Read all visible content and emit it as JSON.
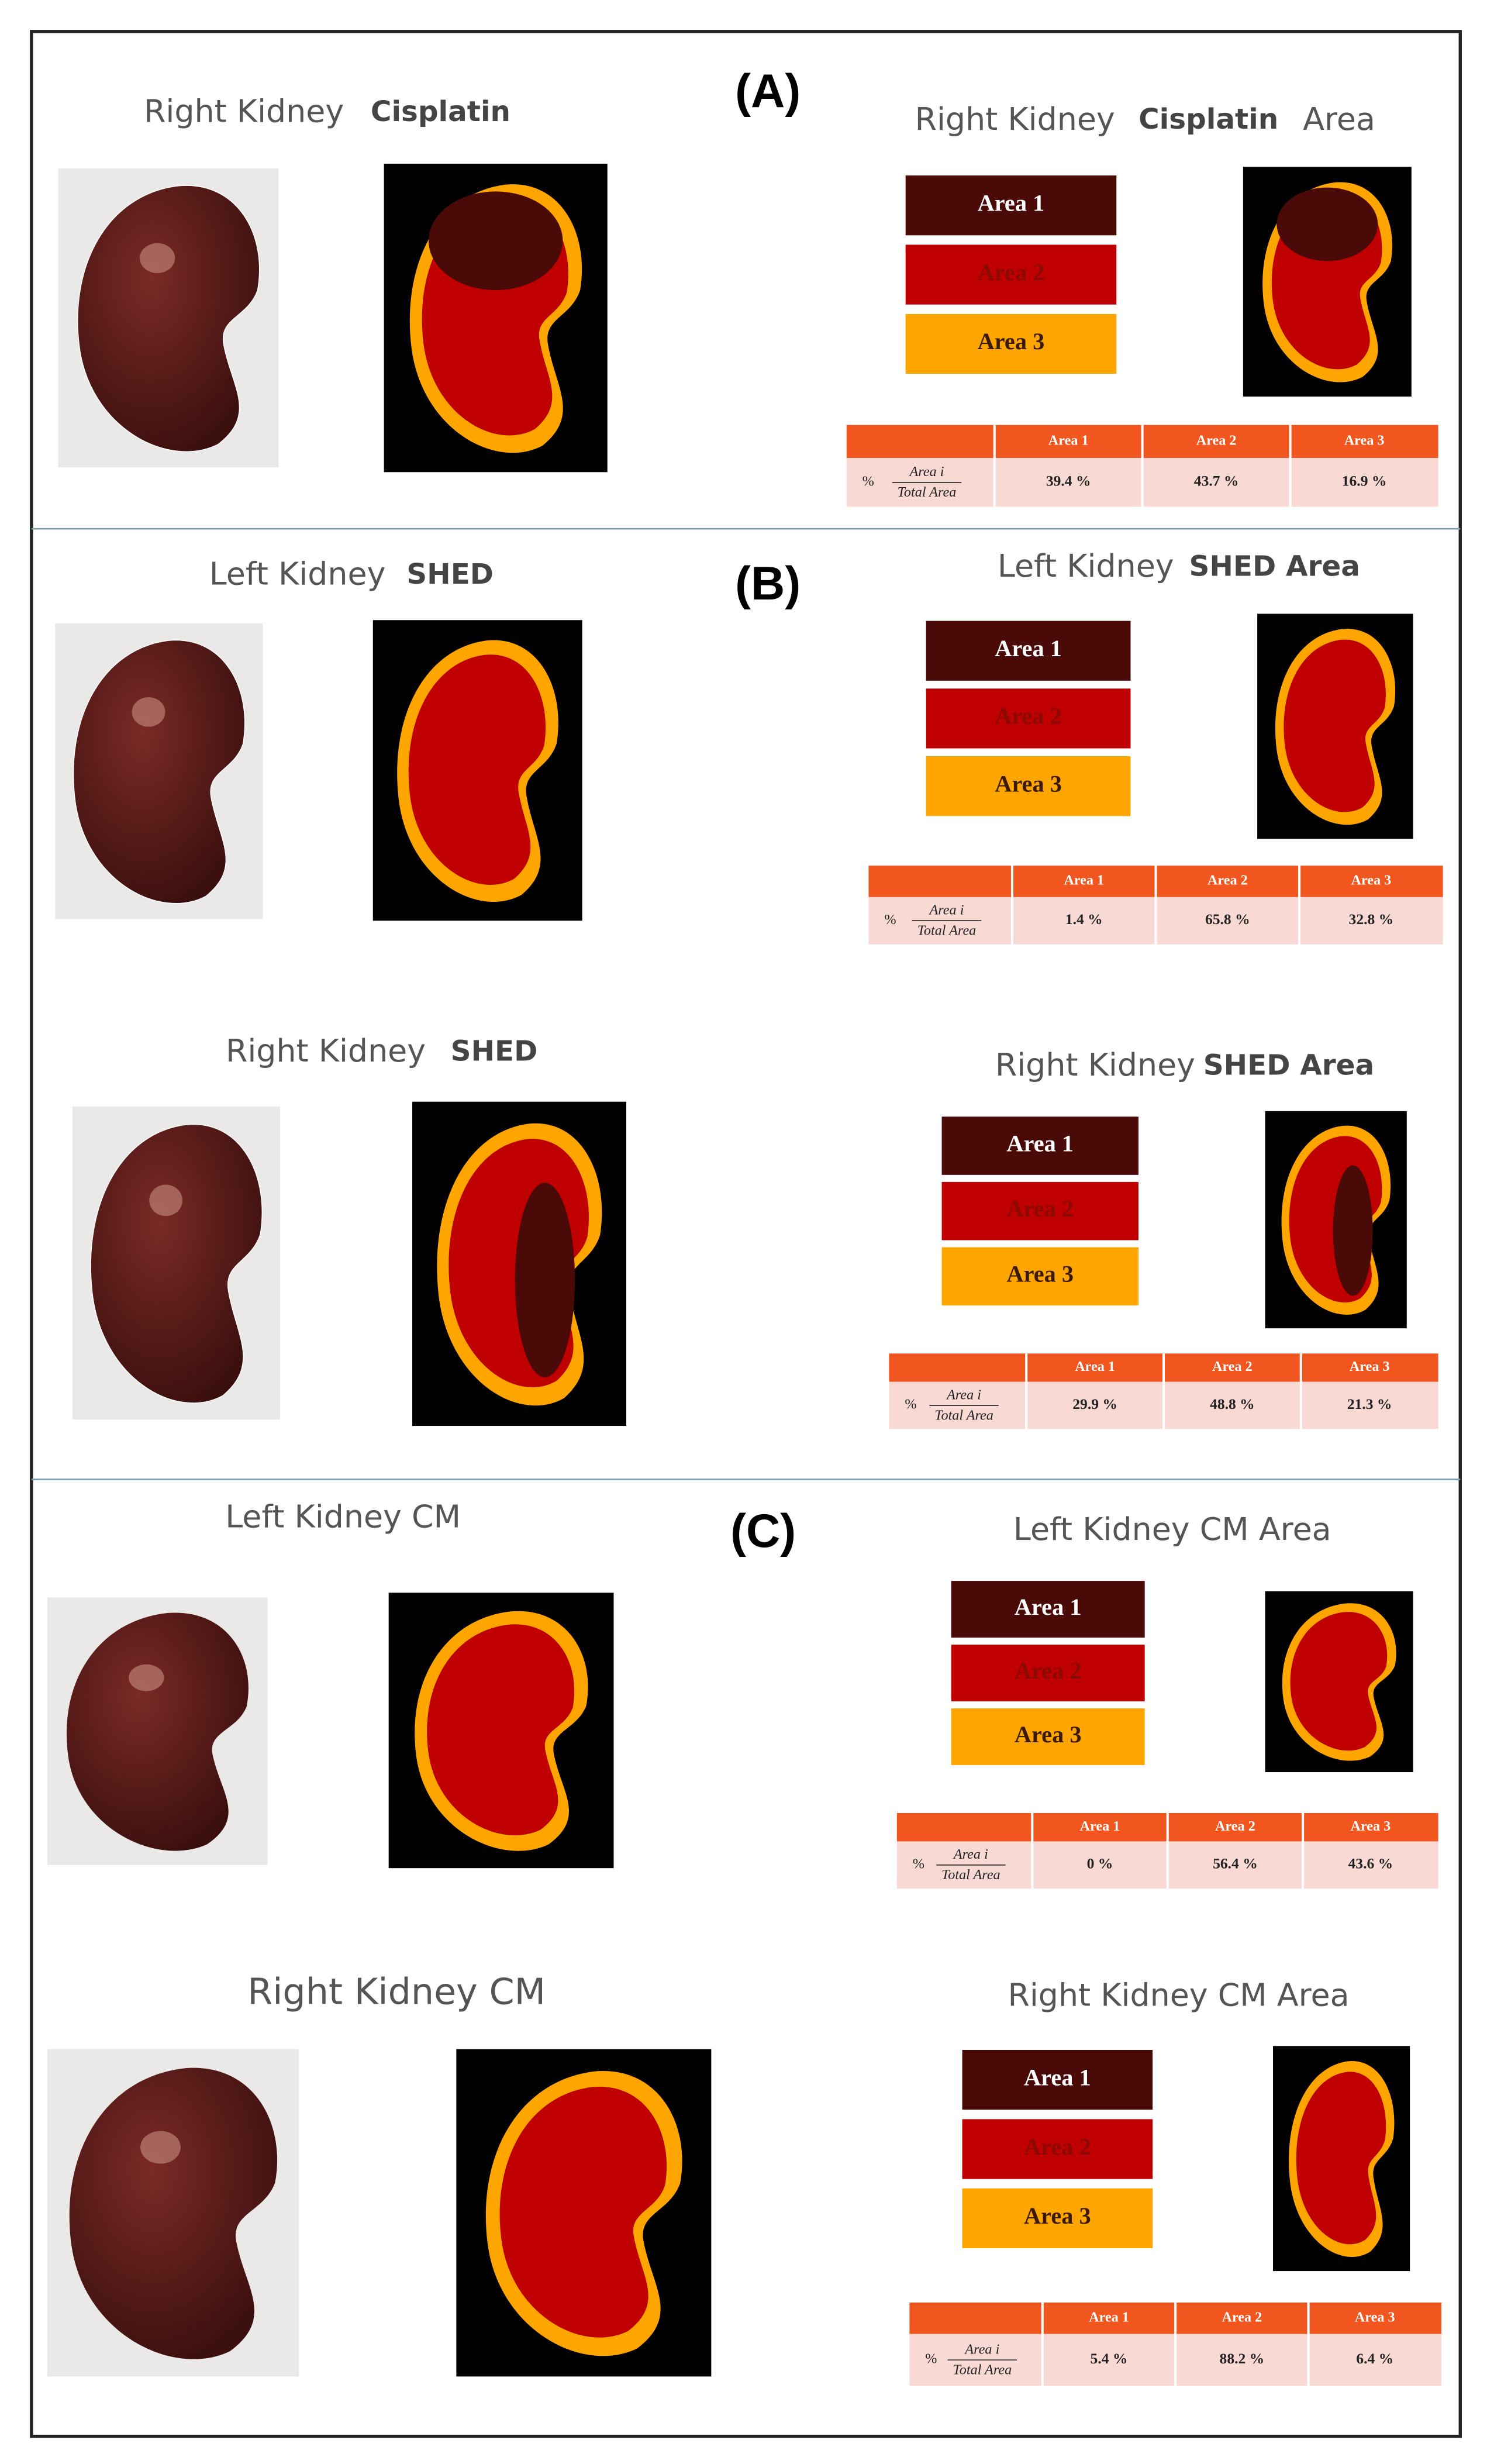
{
  "sections": [
    {
      "label": "(A)",
      "panels": [
        {
          "title_left": [
            "Right Kidney",
            "Cisplatin"
          ],
          "title_right": [
            "Right Kidney",
            "Cisplatin",
            "Area"
          ],
          "legend": [
            "Area 1",
            "Area 2",
            "Area 3"
          ],
          "table": {
            "header": [
              "Area 1",
              "Area 2",
              "Area 3"
            ],
            "row_label": {
              "prefix": "%",
              "numerator": "Area i",
              "denominator": "Total Area"
            },
            "values": [
              "39.4 %",
              "43.7 %",
              "16.9 %"
            ]
          }
        }
      ]
    },
    {
      "label": "(B)",
      "panels": [
        {
          "title_left": [
            "Left Kidney",
            "SHED"
          ],
          "title_right": [
            "Left Kidney",
            "SHED Area"
          ],
          "legend": [
            "Area 1",
            "Area 2",
            "Area 3"
          ],
          "table": {
            "header": [
              "Area 1",
              "Area 2",
              "Area 3"
            ],
            "row_label": {
              "prefix": "%",
              "numerator": "Area i",
              "denominator": "Total Area"
            },
            "values": [
              "1.4 %",
              "65.8 %",
              "32.8 %"
            ]
          }
        },
        {
          "title_left": [
            "Right Kidney",
            "SHED"
          ],
          "title_right": [
            "Right Kidney",
            "SHED Area"
          ],
          "legend": [
            "Area 1",
            "Area 2",
            "Area 3"
          ],
          "table": {
            "header": [
              "Area 1",
              "Area 2",
              "Area 3"
            ],
            "row_label": {
              "prefix": "%",
              "numerator": "Area i",
              "denominator": "Total Area"
            },
            "values": [
              "29.9 %",
              "48.8 %",
              "21.3 %"
            ]
          }
        }
      ]
    },
    {
      "label": "(C)",
      "panels": [
        {
          "title_left": [
            "Left Kidney CM"
          ],
          "title_right": [
            "Left Kidney CM Area"
          ],
          "legend": [
            "Area 1",
            "Area 2",
            "Area 3"
          ],
          "table": {
            "header": [
              "Area 1",
              "Area 2",
              "Area 3"
            ],
            "row_label": {
              "prefix": "%",
              "numerator": "Area i",
              "denominator": "Total Area"
            },
            "values": [
              "0 %",
              "56.4 %",
              "43.6 %"
            ]
          }
        },
        {
          "title_left": [
            "Right Kidney CM"
          ],
          "title_right": [
            "Right Kidney CM Area"
          ],
          "legend": [
            "Area 1",
            "Area 2",
            "Area 3"
          ],
          "table": {
            "header": [
              "Area 1",
              "Area 2",
              "Area 3"
            ],
            "row_label": {
              "prefix": "%",
              "numerator": "Area i",
              "denominator": "Total Area"
            },
            "values": [
              "5.4 %",
              "88.2 %",
              "6.4 %"
            ]
          }
        }
      ]
    }
  ]
}
